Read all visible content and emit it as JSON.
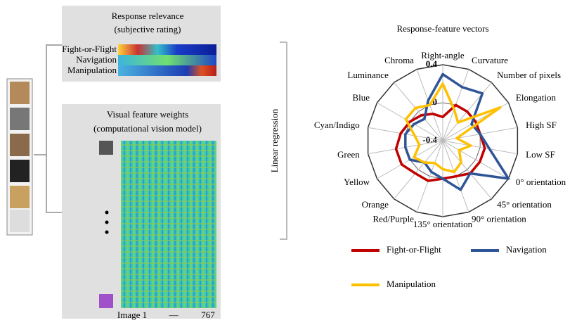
{
  "left_panel": {
    "relevance_title": [
      "Response relevance",
      "(subjective rating)"
    ],
    "relevance_rows": [
      "Fight-or-Flight",
      "Navigation",
      "Manipulation"
    ],
    "features_title": [
      "Visual feature weights",
      "(computational vision model)"
    ],
    "x_start": "Image 1",
    "x_dash": "—",
    "x_end": "767"
  },
  "regression_label": "Linear regression",
  "chart_data": {
    "type": "radar",
    "title": "Response-feature vectors",
    "categories": [
      "Right-angle",
      "Curvature",
      "Number of pixels",
      "Elongation",
      "High SF",
      "Low SF",
      "0° orientation",
      "45° orientation",
      "90° orientation",
      "135° orientation",
      "Red/Purple",
      "Orange",
      "Yellow",
      "Green",
      "Cyan/Indigo",
      "Blue",
      "Luminance",
      "Chroma"
    ],
    "series": [
      {
        "name": "Fight-or-Flight",
        "color": "#c00000",
        "values": [
          -0.15,
          0.0,
          0.0,
          0.0,
          0.0,
          0.05,
          0.05,
          0.05,
          0.0,
          0.0,
          0.05,
          0.05,
          0.1,
          0.1,
          0.05,
          0.0,
          -0.05,
          -0.1
        ]
      },
      {
        "name": "Navigation",
        "color": "#2f5597",
        "values": [
          0.3,
          0.2,
          0.25,
          -0.05,
          0.0,
          0.1,
          0.4,
          0.05,
          0.15,
          0.0,
          -0.05,
          -0.1,
          0.0,
          0.0,
          0.0,
          -0.05,
          -0.1,
          0.05
        ]
      },
      {
        "name": "Manipulation",
        "color": "#ffc000",
        "values": [
          0.2,
          -0.05,
          -0.15,
          0.3,
          -0.25,
          -0.1,
          -0.2,
          -0.1,
          -0.05,
          -0.1,
          -0.15,
          -0.1,
          -0.05,
          -0.15,
          -0.1,
          0.05,
          0.05,
          0.0
        ]
      }
    ],
    "rlim": [
      -0.4,
      0.4
    ],
    "rticks": [
      -0.4,
      0.0,
      0.4
    ],
    "legend": "bottom"
  }
}
